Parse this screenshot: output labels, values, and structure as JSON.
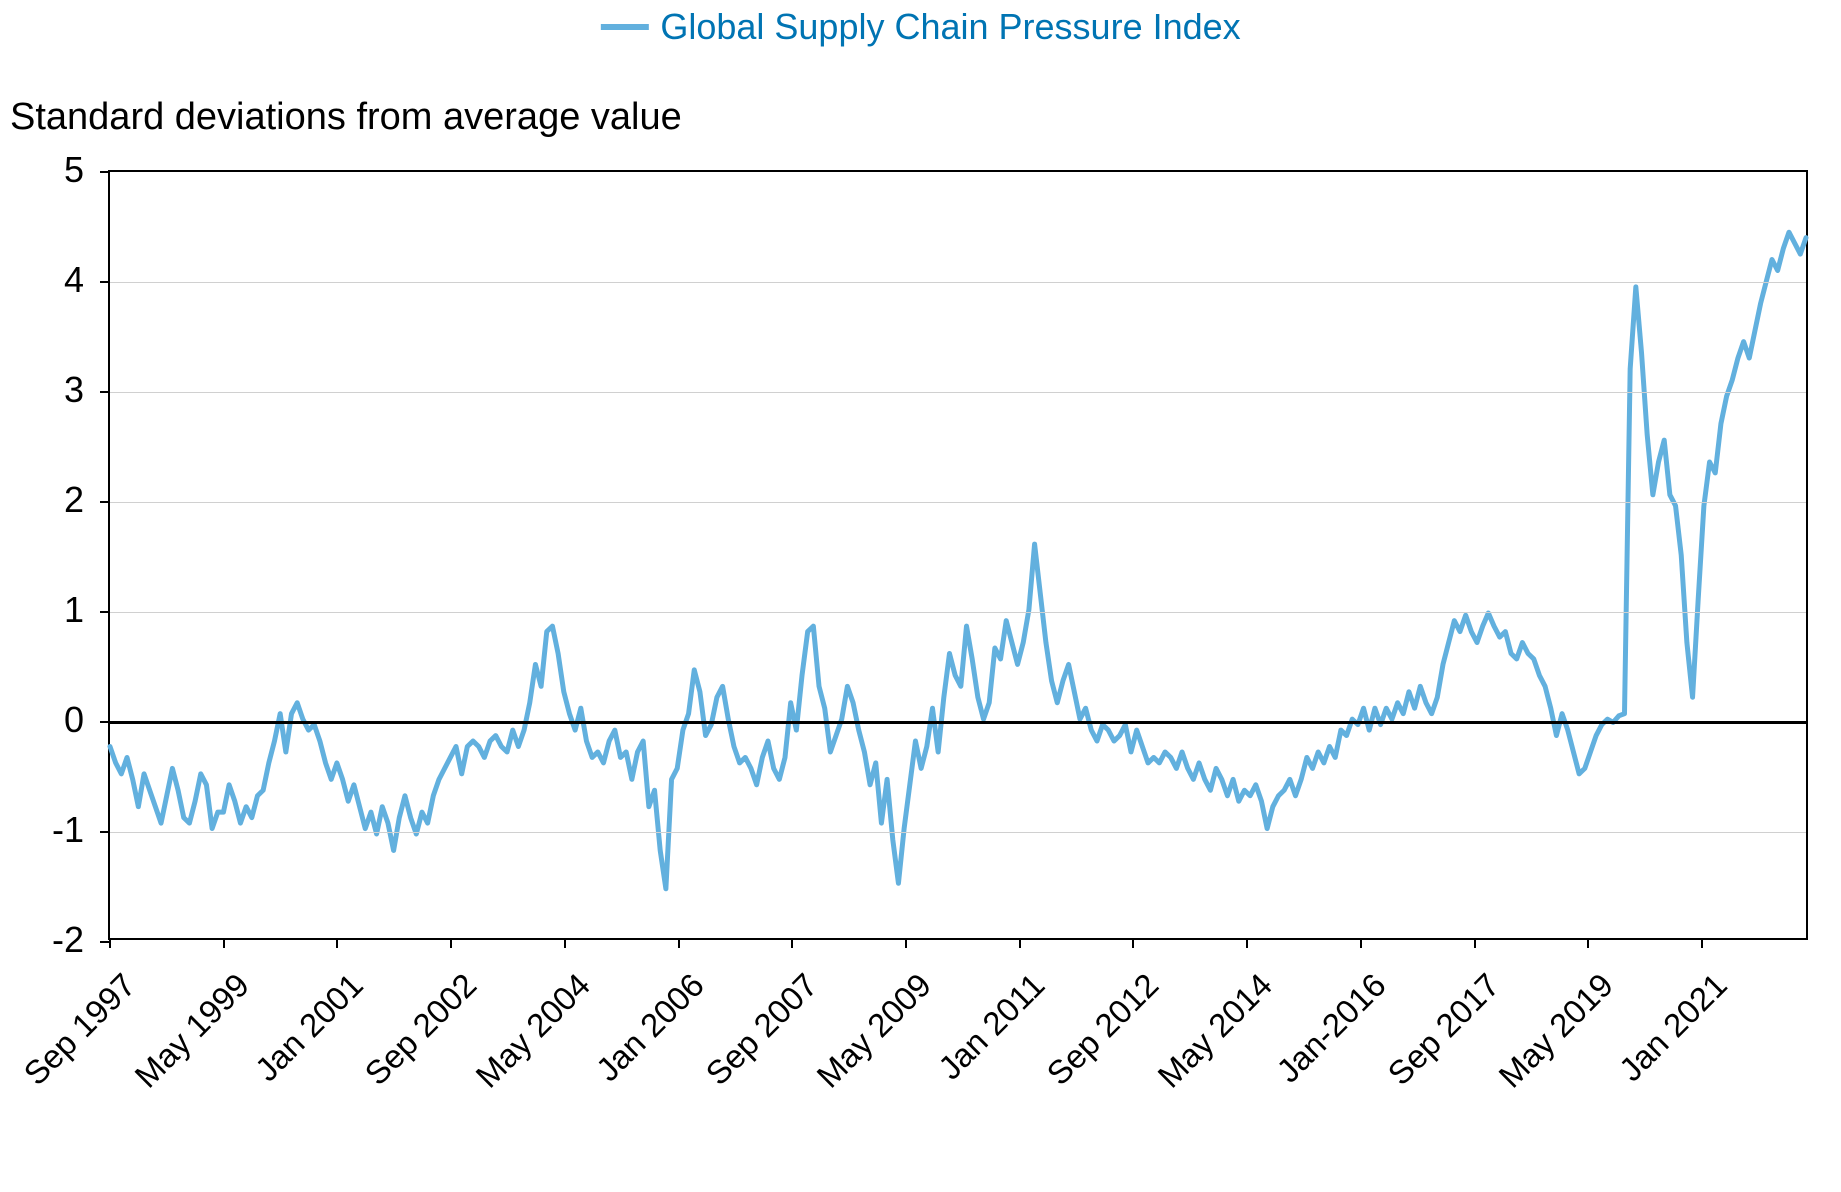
{
  "legend": {
    "label": "Global Supply Chain Pressure Index",
    "color": "#62b0de"
  },
  "subtitle": "Standard deviations from average value",
  "chart": {
    "type": "line",
    "background_color": "#ffffff",
    "grid_color": "#d0d0d0",
    "axis_color": "#000000",
    "zero_line_color": "#000000",
    "line_color": "#62b0de",
    "line_width": 5,
    "title_fontsize": 36,
    "label_fontsize": 36,
    "tick_fontsize": 33,
    "ylim": [
      -2,
      5
    ],
    "ytick_step": 1,
    "yticks": [
      -2,
      -1,
      0,
      1,
      2,
      3,
      4,
      5
    ],
    "xtick_labels": [
      "Sep 1997",
      "May 1999",
      "Jan 2001",
      "Sep 2002",
      "May 2004",
      "Jan 2006",
      "Sep 2007",
      "May 2009",
      "Jan 2011",
      "Sep 2012",
      "May 2014",
      "Jan-2016",
      "Sep 2017",
      "May 2019",
      "Jan 2021"
    ],
    "xtick_positions": [
      0,
      20,
      40,
      60,
      80,
      100,
      120,
      140,
      160,
      180,
      200,
      220,
      240,
      260,
      280
    ],
    "n_points": 300,
    "values": [
      -0.25,
      -0.4,
      -0.5,
      -0.35,
      -0.55,
      -0.8,
      -0.5,
      -0.65,
      -0.8,
      -0.95,
      -0.7,
      -0.45,
      -0.65,
      -0.9,
      -0.95,
      -0.75,
      -0.5,
      -0.6,
      -1.0,
      -0.85,
      -0.85,
      -0.6,
      -0.75,
      -0.95,
      -0.8,
      -0.9,
      -0.7,
      -0.65,
      -0.4,
      -0.2,
      0.05,
      -0.3,
      0.05,
      0.15,
      0.0,
      -0.1,
      -0.05,
      -0.2,
      -0.4,
      -0.55,
      -0.4,
      -0.55,
      -0.75,
      -0.6,
      -0.8,
      -1.0,
      -0.85,
      -1.05,
      -0.8,
      -0.95,
      -1.2,
      -0.9,
      -0.7,
      -0.9,
      -1.05,
      -0.85,
      -0.95,
      -0.7,
      -0.55,
      -0.45,
      -0.35,
      -0.25,
      -0.5,
      -0.25,
      -0.2,
      -0.25,
      -0.35,
      -0.2,
      -0.15,
      -0.25,
      -0.3,
      -0.1,
      -0.25,
      -0.1,
      0.15,
      0.5,
      0.3,
      0.8,
      0.85,
      0.6,
      0.25,
      0.05,
      -0.1,
      0.1,
      -0.2,
      -0.35,
      -0.3,
      -0.4,
      -0.2,
      -0.1,
      -0.35,
      -0.3,
      -0.55,
      -0.3,
      -0.2,
      -0.8,
      -0.65,
      -1.2,
      -1.55,
      -0.55,
      -0.45,
      -0.1,
      0.05,
      0.45,
      0.25,
      -0.15,
      -0.05,
      0.2,
      0.3,
      0.0,
      -0.25,
      -0.4,
      -0.35,
      -0.45,
      -0.6,
      -0.35,
      -0.2,
      -0.45,
      -0.55,
      -0.35,
      0.15,
      -0.1,
      0.4,
      0.8,
      0.85,
      0.3,
      0.1,
      -0.3,
      -0.15,
      0.0,
      0.3,
      0.15,
      -0.1,
      -0.3,
      -0.6,
      -0.4,
      -0.95,
      -0.55,
      -1.1,
      -1.5,
      -1.0,
      -0.6,
      -0.2,
      -0.45,
      -0.25,
      0.1,
      -0.3,
      0.2,
      0.6,
      0.4,
      0.3,
      0.85,
      0.55,
      0.2,
      0.0,
      0.15,
      0.65,
      0.55,
      0.9,
      0.7,
      0.5,
      0.7,
      1.0,
      1.6,
      1.15,
      0.7,
      0.35,
      0.15,
      0.35,
      0.5,
      0.25,
      0.0,
      0.1,
      -0.1,
      -0.2,
      -0.05,
      -0.1,
      -0.2,
      -0.15,
      -0.05,
      -0.3,
      -0.1,
      -0.25,
      -0.4,
      -0.35,
      -0.4,
      -0.3,
      -0.35,
      -0.45,
      -0.3,
      -0.45,
      -0.55,
      -0.4,
      -0.55,
      -0.65,
      -0.45,
      -0.55,
      -0.7,
      -0.55,
      -0.75,
      -0.65,
      -0.7,
      -0.6,
      -0.75,
      -1.0,
      -0.8,
      -0.7,
      -0.65,
      -0.55,
      -0.7,
      -0.55,
      -0.35,
      -0.45,
      -0.3,
      -0.4,
      -0.25,
      -0.35,
      -0.1,
      -0.15,
      0.0,
      -0.05,
      0.1,
      -0.1,
      0.1,
      -0.05,
      0.1,
      0.0,
      0.15,
      0.05,
      0.25,
      0.1,
      0.3,
      0.15,
      0.05,
      0.2,
      0.5,
      0.7,
      0.9,
      0.8,
      0.95,
      0.8,
      0.7,
      0.85,
      0.97,
      0.85,
      0.75,
      0.8,
      0.6,
      0.55,
      0.7,
      0.6,
      0.55,
      0.4,
      0.3,
      0.1,
      -0.15,
      0.05,
      -0.1,
      -0.3,
      -0.5,
      -0.45,
      -0.3,
      -0.15,
      -0.05,
      0.0,
      -0.03,
      0.03,
      0.05,
      3.2,
      3.95,
      3.35,
      2.6,
      2.05,
      2.35,
      2.55,
      2.05,
      1.95,
      1.5,
      0.7,
      0.2,
      1.1,
      1.95,
      2.35,
      2.25,
      2.7,
      2.95,
      3.1,
      3.3,
      3.45,
      3.3,
      3.55,
      3.8,
      4.0,
      4.2,
      4.1,
      4.3,
      4.45,
      4.35,
      4.25,
      4.4
    ]
  }
}
